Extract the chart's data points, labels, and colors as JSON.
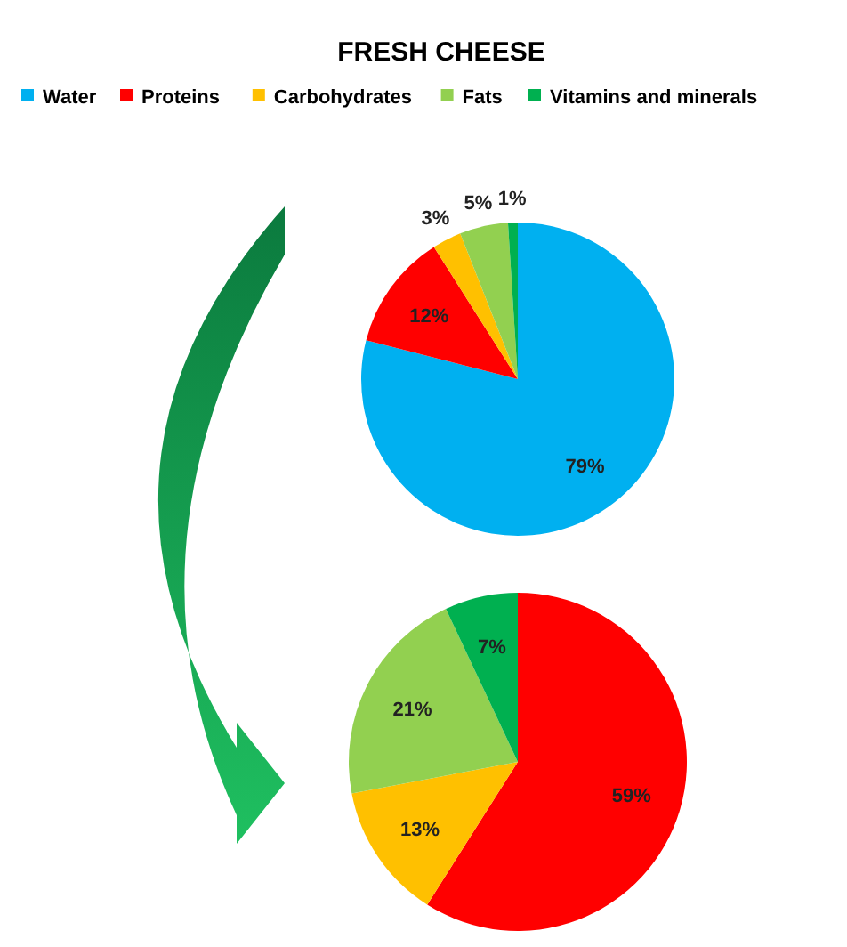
{
  "chart_data": [
    {
      "type": "pie",
      "title": "FRESH CHEESE",
      "categories": [
        "Water",
        "Proteins",
        "Carbohydrates",
        "Fats",
        "Vitamins and minerals"
      ],
      "values": [
        79,
        12,
        3,
        5,
        1
      ],
      "value_labels": [
        "79%",
        "12%",
        "3%",
        "5%",
        "1%"
      ],
      "colors": [
        "#00b0f0",
        "#ff0000",
        "#ffc000",
        "#92d050",
        "#00b050"
      ],
      "legend": "top"
    },
    {
      "type": "pie",
      "categories": [
        null,
        null,
        null,
        null
      ],
      "values": [
        59,
        13,
        21,
        7
      ],
      "value_labels": [
        "59%",
        "13%",
        "21%",
        "7%"
      ],
      "colors": [
        "#ff0000",
        "#ffc000",
        "#92d050",
        "#00b050"
      ]
    }
  ]
}
